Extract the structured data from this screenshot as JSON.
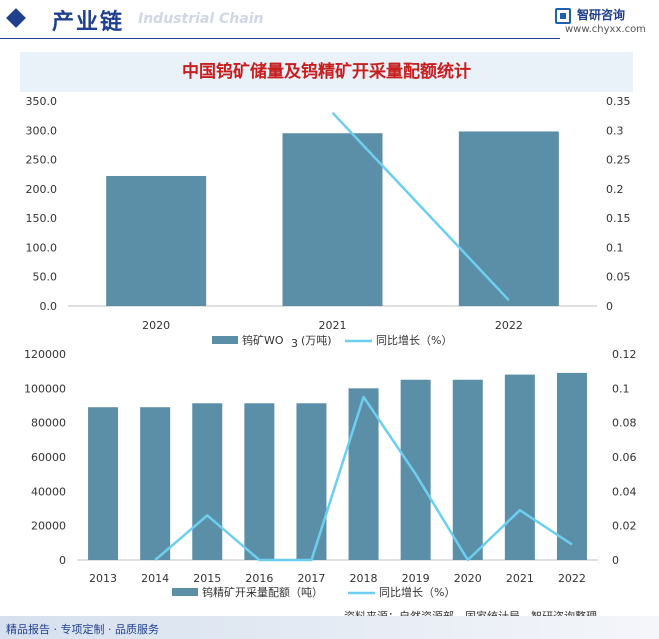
{
  "header": {
    "section_title": "产业链",
    "section_subtitle": "Industrial Chain",
    "logo_name": "智研咨询",
    "logo_url": "www.chyxx.com"
  },
  "title": "中国钨矿储量及钨精矿开采量配额统计",
  "chart_data": [
    {
      "type": "bar",
      "categories": [
        "2020",
        "2021",
        "2022"
      ],
      "series": [
        {
          "name": "钨矿WO3 (万吨)",
          "kind": "bar",
          "axis": "left",
          "values": [
            222,
            295,
            298
          ]
        },
        {
          "name": "同比增长（%）",
          "kind": "line",
          "axis": "right",
          "values": [
            null,
            0.33,
            0.01
          ]
        }
      ],
      "y_left": {
        "min": 0,
        "max": 350,
        "step": 50,
        "ticks": [
          "0.0",
          "50.0",
          "100.0",
          "150.0",
          "200.0",
          "250.0",
          "300.0",
          "350.0"
        ]
      },
      "y_right": {
        "min": 0,
        "max": 0.35,
        "step": 0.05,
        "ticks": [
          "0",
          "0.05",
          "0.1",
          "0.15",
          "0.2",
          "0.25",
          "0.3",
          "0.35"
        ]
      },
      "legend": {
        "placement": "bottom",
        "items": [
          "钨矿WO",
          "(万吨)",
          "同比增长（%）"
        ],
        "subscript": "3"
      }
    },
    {
      "type": "bar",
      "categories": [
        "2013",
        "2014",
        "2015",
        "2016",
        "2017",
        "2018",
        "2019",
        "2020",
        "2021",
        "2022"
      ],
      "series": [
        {
          "name": "钨精矿开采量配额（吨）",
          "kind": "bar",
          "axis": "left",
          "values": [
            89000,
            89000,
            91300,
            91300,
            91300,
            100000,
            105000,
            105000,
            108000,
            109000
          ]
        },
        {
          "name": "同比增长（%）",
          "kind": "line",
          "axis": "right",
          "values": [
            null,
            0,
            0.026,
            0,
            0,
            0.095,
            0.05,
            0,
            0.029,
            0.009
          ]
        }
      ],
      "y_left": {
        "min": 0,
        "max": 120000,
        "step": 20000,
        "ticks": [
          "0",
          "20000",
          "40000",
          "60000",
          "80000",
          "100000",
          "120000"
        ]
      },
      "y_right": {
        "min": 0,
        "max": 0.12,
        "step": 0.02,
        "ticks": [
          "0",
          "0.02",
          "0.04",
          "0.06",
          "0.08",
          "0.1",
          "0.12"
        ]
      },
      "legend": {
        "placement": "bottom",
        "items": [
          "钨精矿开采量配额（吨）",
          "同比增长（%）"
        ]
      }
    }
  ],
  "colors": {
    "bar": "#5b8fa8",
    "line": "#6ccff0",
    "brand": "#1f3f8f",
    "title": "#c81e1e"
  },
  "source": "资料来源：自然资源部、国家统计局、智研咨询整理",
  "footer": "精品报告 · 专项定制 · 品质服务"
}
